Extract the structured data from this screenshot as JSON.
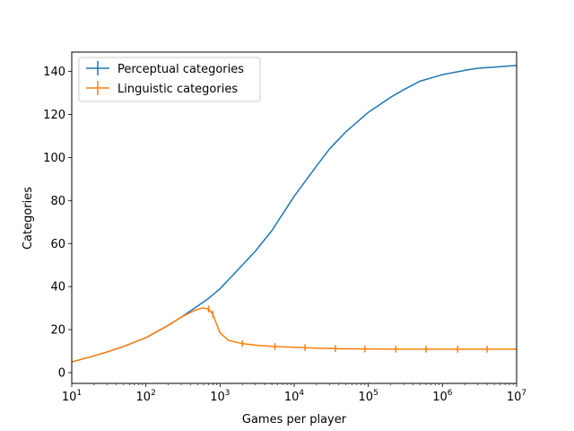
{
  "chart_data": {
    "type": "line",
    "xlabel": "Games per player",
    "ylabel": "Categories",
    "xscale": "log",
    "xlim": [
      10,
      10000000
    ],
    "ylim": [
      -5,
      149
    ],
    "grid": false,
    "legend_position": "top-left",
    "x_ticks": [
      {
        "value": 10,
        "base": "10",
        "exp": "1"
      },
      {
        "value": 100,
        "base": "10",
        "exp": "2"
      },
      {
        "value": 1000,
        "base": "10",
        "exp": "3"
      },
      {
        "value": 10000,
        "base": "10",
        "exp": "4"
      },
      {
        "value": 100000,
        "base": "10",
        "exp": "5"
      },
      {
        "value": 1000000,
        "base": "10",
        "exp": "6"
      },
      {
        "value": 10000000,
        "base": "10",
        "exp": "7"
      }
    ],
    "y_ticks": [
      0,
      20,
      40,
      60,
      80,
      100,
      120,
      140
    ],
    "series": [
      {
        "name": "Perceptual categories",
        "color": "#1f77b4",
        "x": [
          10,
          20,
          30,
          50,
          100,
          200,
          300,
          500,
          700,
          1000,
          2000,
          3000,
          5000,
          10000,
          20000,
          30000,
          50000,
          100000,
          200000,
          300000,
          500000,
          1000000,
          2000000,
          3000000,
          5000000,
          10000000
        ],
        "y": [
          5,
          7.8,
          9.6,
          12.2,
          16.2,
          22,
          25.8,
          31,
          34.5,
          39,
          50,
          56.5,
          66,
          82,
          96,
          104,
          112,
          121,
          128,
          131.5,
          135.5,
          138.5,
          140.5,
          141.5,
          142,
          142.8
        ]
      },
      {
        "name": "Linguistic categories",
        "color": "#ff7f0e",
        "x": [
          10,
          20,
          30,
          50,
          100,
          200,
          300,
          450,
          580,
          700,
          800,
          900,
          1000,
          1300,
          2000,
          3000,
          5000,
          10000,
          20000,
          50000,
          100000,
          300000,
          1000000,
          3000000,
          10000000
        ],
        "y": [
          5,
          7.8,
          9.6,
          12.2,
          16.2,
          22,
          25.8,
          28.8,
          30.1,
          29.6,
          27.2,
          22.5,
          18.5,
          15,
          13.5,
          12.8,
          12.2,
          11.8,
          11.4,
          11.1,
          11,
          10.9,
          10.9,
          10.9,
          10.9
        ],
        "errorbar_x": [
          700,
          800,
          2000,
          5500,
          14000,
          36000,
          90000,
          235000,
          600000,
          1600000,
          4000000
        ],
        "errorbar_half": 1.6
      }
    ]
  }
}
